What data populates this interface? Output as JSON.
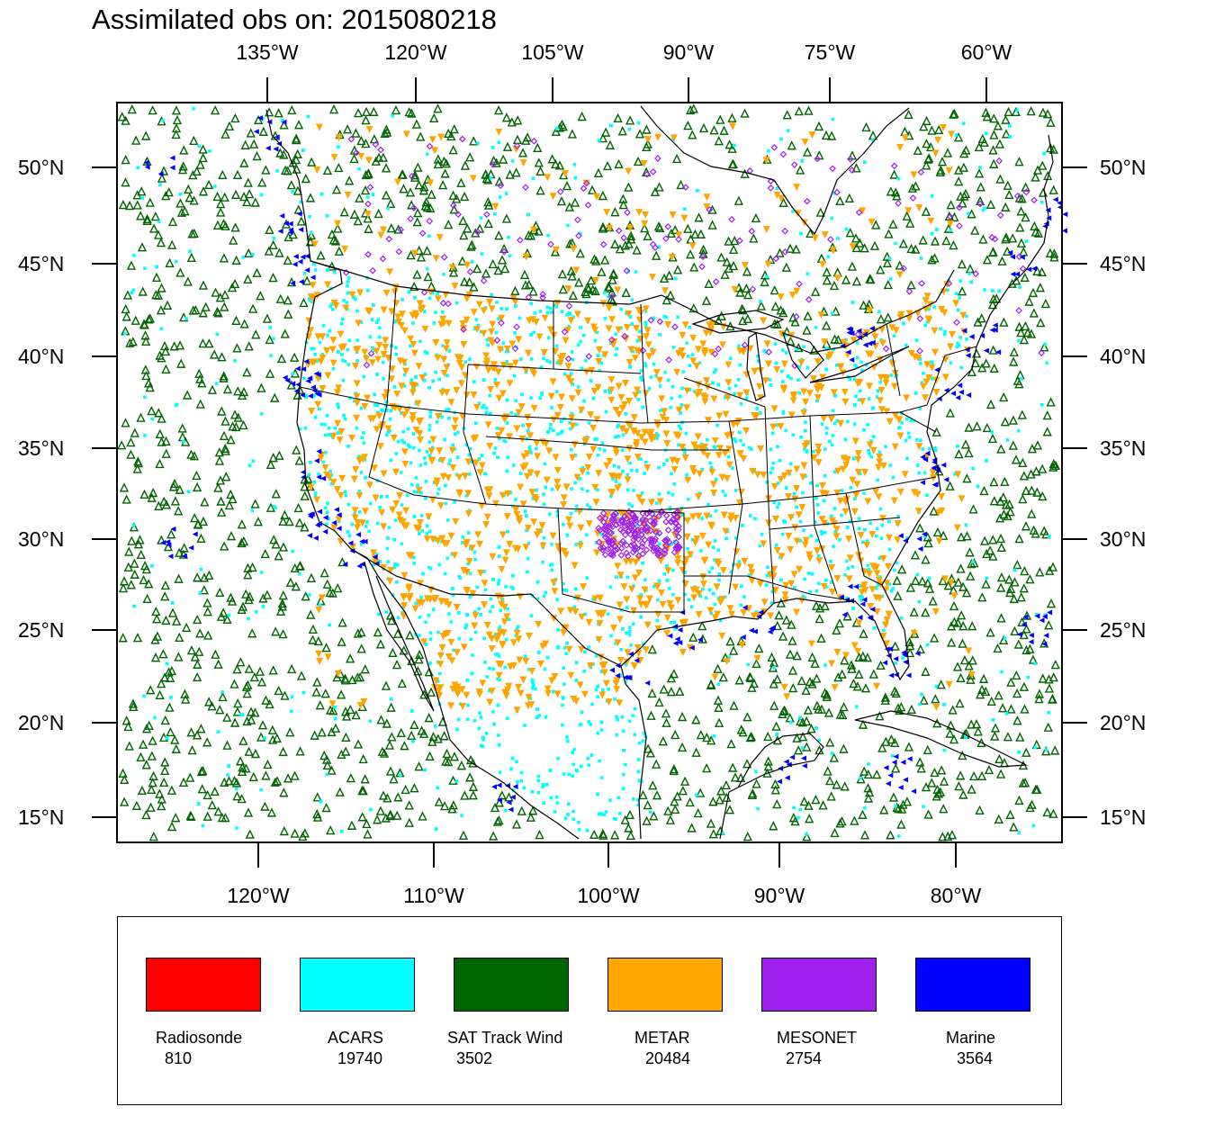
{
  "title": "Assimilated obs on: 2015080218",
  "axes": {
    "top_labels": [
      "135°W",
      "120°W",
      "105°W",
      "90°W",
      "75°W",
      "60°W"
    ],
    "bottom_labels": [
      "120°W",
      "110°W",
      "100°W",
      "90°W",
      "80°W"
    ],
    "left_labels": [
      "50°N",
      "45°N",
      "40°N",
      "35°N",
      "30°N",
      "25°N",
      "20°N",
      "15°N"
    ],
    "right_labels": [
      "50°N",
      "45°N",
      "40°N",
      "35°N",
      "30°N",
      "25°N",
      "20°N",
      "15°N"
    ]
  },
  "legend": [
    {
      "name": "Radiosonde",
      "count": "810",
      "color": "#ff0000"
    },
    {
      "name": "ACARS",
      "count": "19740",
      "color": "#00ffff"
    },
    {
      "name": "SAT Track Wind",
      "count": "3502",
      "color": "#006400"
    },
    {
      "name": "METAR",
      "count": "20484",
      "color": "#ffa500"
    },
    {
      "name": "MESONET",
      "count": "2754",
      "color": "#a020f0"
    },
    {
      "name": "Marine",
      "count": "3564",
      "color": "#0000ff"
    }
  ]
}
